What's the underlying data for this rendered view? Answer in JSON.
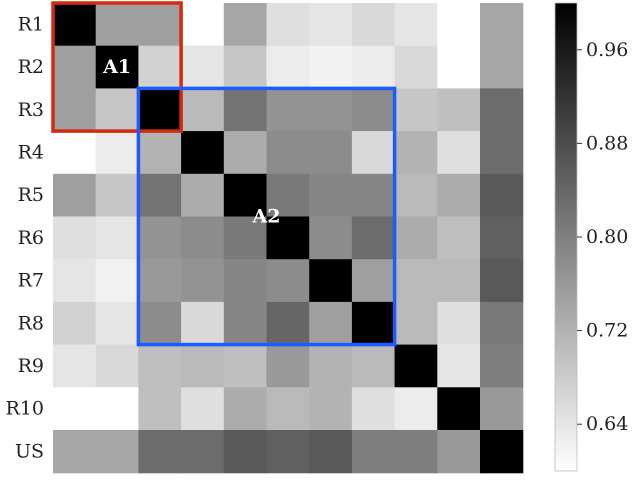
{
  "chart_data": {
    "type": "heatmap",
    "row_labels": [
      "R1",
      "R2",
      "R3",
      "R4",
      "R5",
      "R6",
      "R7",
      "R8",
      "R9",
      "R10",
      "US"
    ],
    "values": [
      [
        1.0,
        0.75,
        0.75,
        0.6,
        0.74,
        0.65,
        0.64,
        0.66,
        0.64,
        0.6,
        0.74
      ],
      [
        0.75,
        1.0,
        0.67,
        0.64,
        0.69,
        0.63,
        0.62,
        0.63,
        0.66,
        0.6,
        0.74
      ],
      [
        0.75,
        0.69,
        1.0,
        0.71,
        0.82,
        0.77,
        0.77,
        0.78,
        0.69,
        0.7,
        0.83
      ],
      [
        0.6,
        0.63,
        0.72,
        1.0,
        0.73,
        0.78,
        0.78,
        0.66,
        0.72,
        0.65,
        0.83
      ],
      [
        0.75,
        0.69,
        0.82,
        0.73,
        1.0,
        0.81,
        0.79,
        0.79,
        0.71,
        0.73,
        0.86
      ],
      [
        0.65,
        0.64,
        0.77,
        0.78,
        0.81,
        1.0,
        0.78,
        0.83,
        0.73,
        0.7,
        0.85
      ],
      [
        0.64,
        0.62,
        0.76,
        0.77,
        0.79,
        0.78,
        1.0,
        0.75,
        0.71,
        0.71,
        0.86
      ],
      [
        0.67,
        0.64,
        0.78,
        0.66,
        0.79,
        0.84,
        0.75,
        1.0,
        0.71,
        0.65,
        0.81
      ],
      [
        0.64,
        0.66,
        0.7,
        0.71,
        0.7,
        0.76,
        0.72,
        0.71,
        1.0,
        0.64,
        0.8
      ],
      [
        0.6,
        0.6,
        0.7,
        0.65,
        0.73,
        0.71,
        0.72,
        0.65,
        0.63,
        1.0,
        0.76
      ],
      [
        0.74,
        0.74,
        0.83,
        0.83,
        0.86,
        0.85,
        0.86,
        0.8,
        0.8,
        0.76,
        1.0
      ]
    ],
    "colorbar": {
      "min": 0.6,
      "max": 1.0,
      "ticks": [
        0.64,
        0.72,
        0.8,
        0.88,
        0.96
      ],
      "tick_labels": [
        "0.64",
        "0.72",
        "0.80",
        "0.88",
        "0.96"
      ],
      "colormap": "greys"
    },
    "annotations": [
      {
        "label": "A1",
        "rows": [
          0,
          2
        ],
        "cols": [
          0,
          2
        ],
        "label_cell": [
          1,
          1
        ],
        "color": "#d42a10"
      },
      {
        "label": "A2",
        "rows": [
          2,
          7
        ],
        "cols": [
          2,
          7
        ],
        "label_cell": [
          4.5,
          4.5
        ],
        "color": "#1a5cff"
      }
    ]
  }
}
